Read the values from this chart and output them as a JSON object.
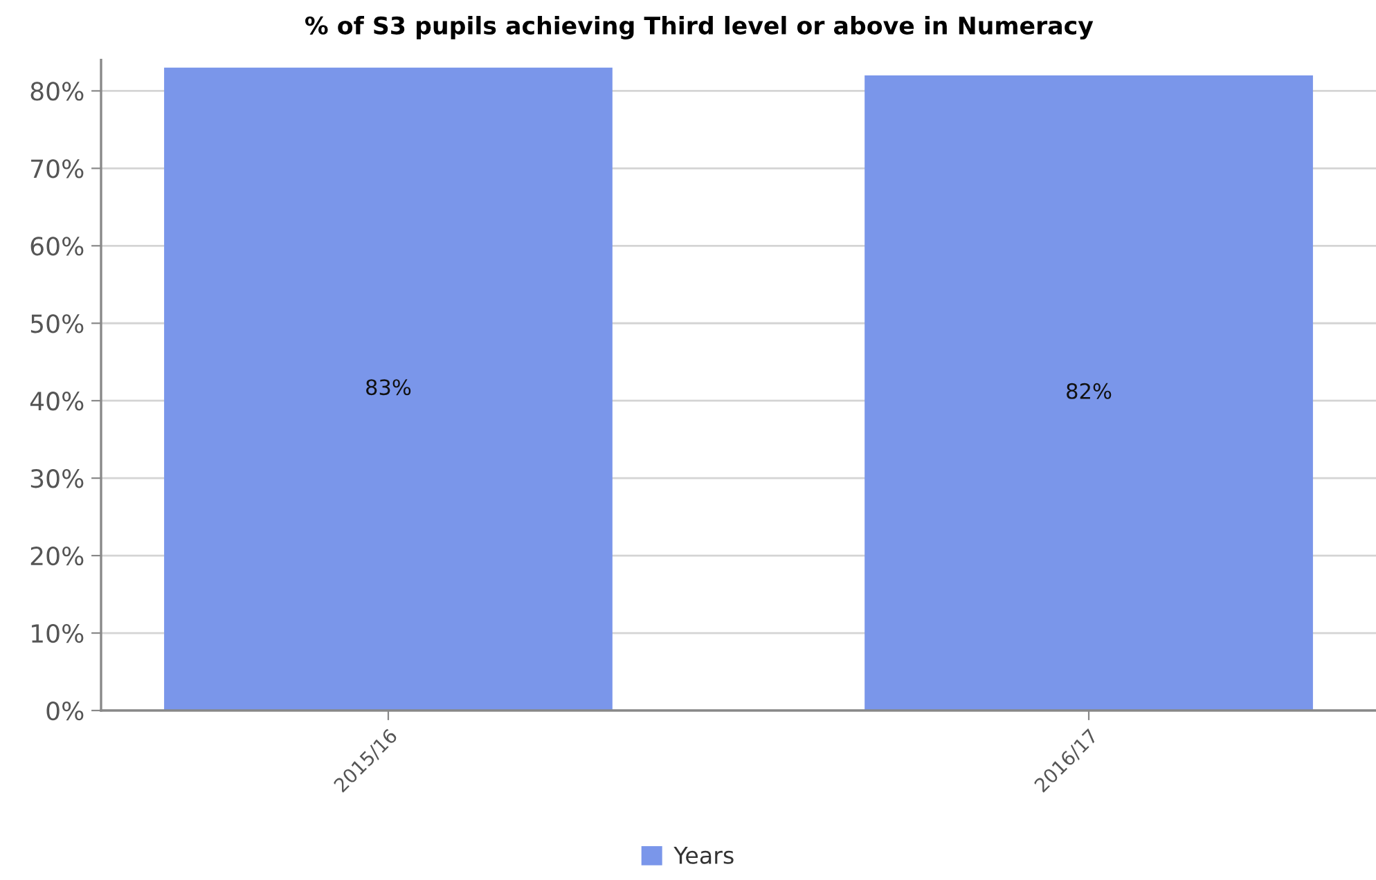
{
  "chart_data": {
    "type": "bar",
    "title": "% of S3 pupils achieving Third level or above in Numeracy",
    "categories": [
      "2015/16",
      "2016/17"
    ],
    "series": [
      {
        "name": "Years",
        "color": "#7a96ea",
        "values": [
          83,
          82
        ],
        "value_labels": [
          "83%",
          "82%"
        ]
      }
    ],
    "ylim": [
      0,
      84
    ],
    "yticks": [
      {
        "value": 0,
        "label": "0%"
      },
      {
        "value": 10,
        "label": "10%"
      },
      {
        "value": 20,
        "label": "20%"
      },
      {
        "value": 30,
        "label": "30%"
      },
      {
        "value": 40,
        "label": "40%"
      },
      {
        "value": 50,
        "label": "50%"
      },
      {
        "value": 60,
        "label": "60%"
      },
      {
        "value": 70,
        "label": "70%"
      },
      {
        "value": 80,
        "label": "80%"
      }
    ],
    "grid": "y",
    "legend": "bottom"
  }
}
